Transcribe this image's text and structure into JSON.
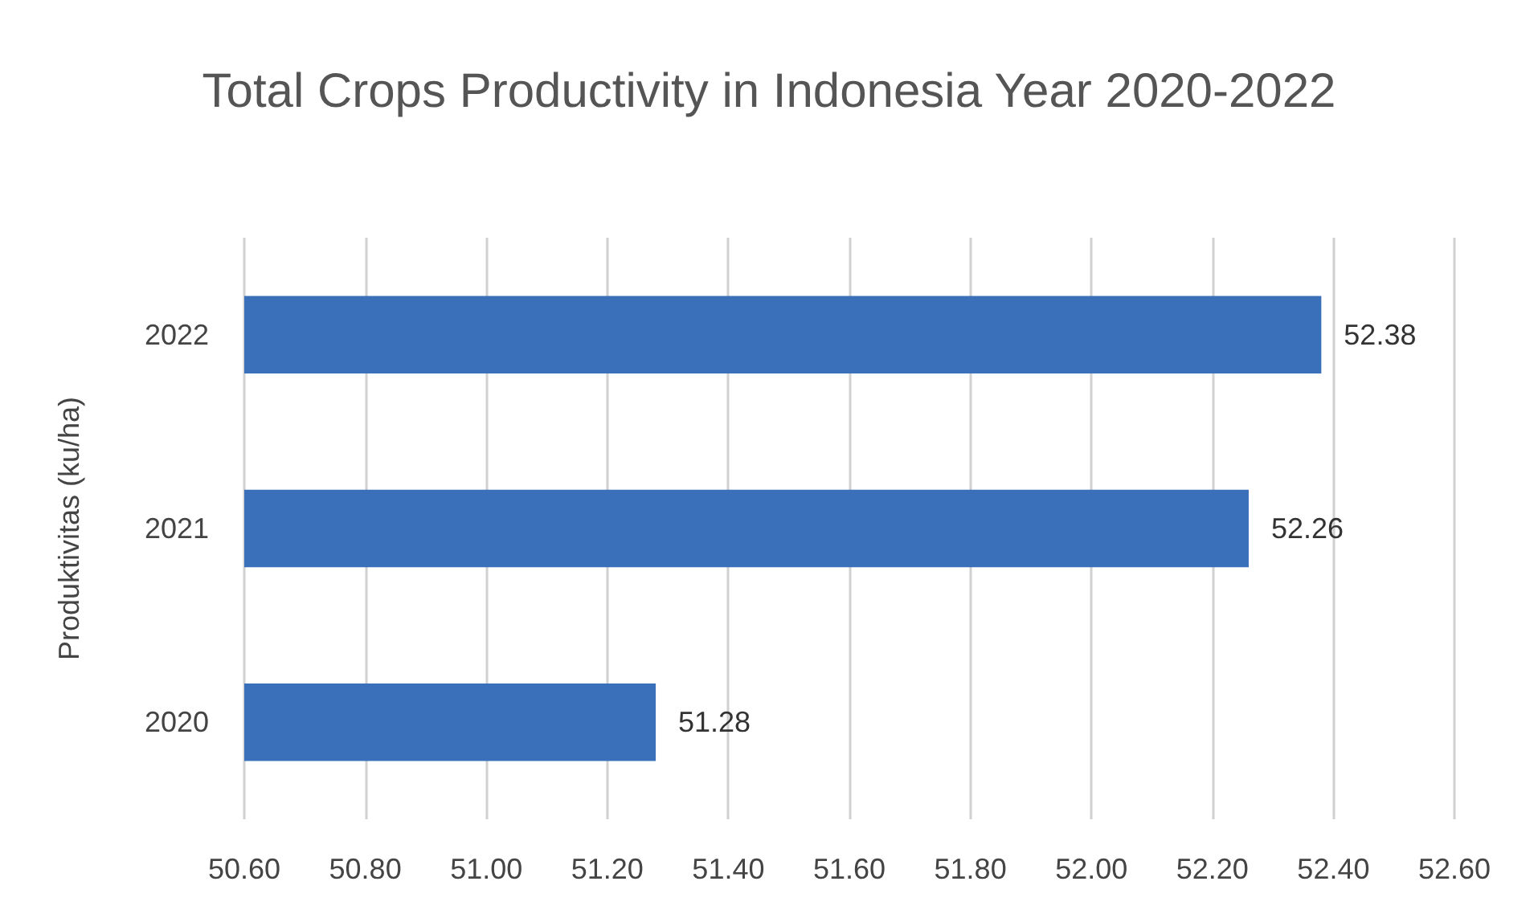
{
  "chart_data": {
    "type": "bar",
    "orientation": "horizontal",
    "title": "Total Crops Productivity in Indonesia Year 2020-2022",
    "ylabel": "Produktivitas (ku/ha)",
    "categories": [
      "2022",
      "2021",
      "2020"
    ],
    "values": [
      52.38,
      52.26,
      51.28
    ],
    "color": "#3a70b9",
    "xlim": [
      50.6,
      52.6
    ],
    "xticks": [
      {
        "value": 50.6,
        "label": "50.60"
      },
      {
        "value": 50.8,
        "label": "50.80"
      },
      {
        "value": 51,
        "label": "51.00"
      },
      {
        "value": 51.2,
        "label": "51.20"
      },
      {
        "value": 51.4,
        "label": "51.40"
      },
      {
        "value": 51.6,
        "label": "51.60"
      },
      {
        "value": 51.8,
        "label": "51.80"
      },
      {
        "value": 52,
        "label": "52.00"
      },
      {
        "value": 52.2,
        "label": "52.20"
      },
      {
        "value": 52.4,
        "label": "52.40"
      },
      {
        "value": 52.6,
        "label": "52.60"
      }
    ],
    "grid": "x",
    "data_labels": true
  }
}
